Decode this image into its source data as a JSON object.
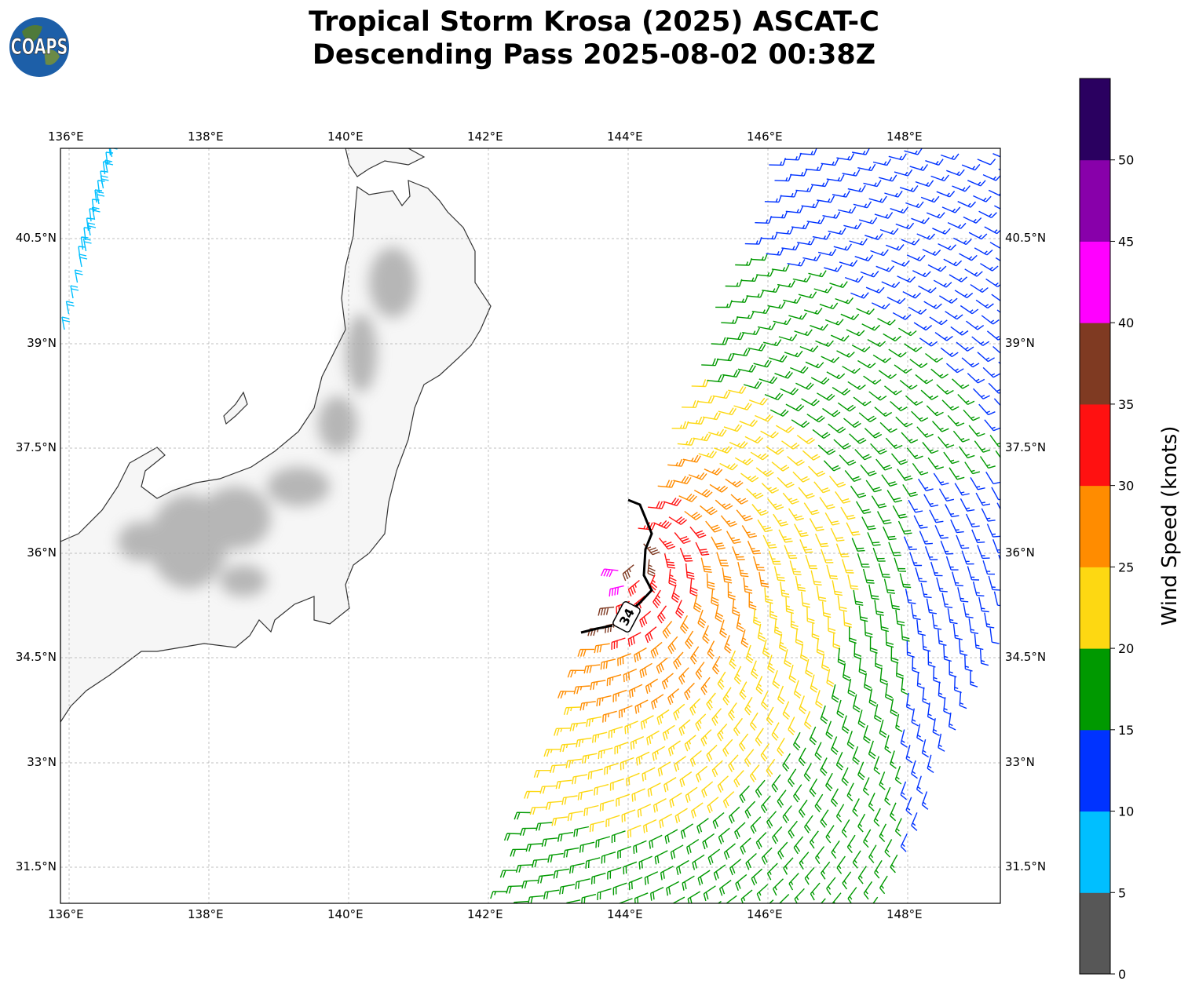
{
  "header": {
    "title_line1": "Tropical Storm Krosa (2025) ASCAT-C",
    "title_line2": "Descending Pass 2025-08-02 00:38Z",
    "logo_text": "COAPS"
  },
  "map": {
    "lon_ticks": [
      "136°E",
      "138°E",
      "140°E",
      "142°E",
      "144°E",
      "146°E",
      "148°E"
    ],
    "lat_ticks": [
      "40.5°N",
      "39°N",
      "37.5°N",
      "36°N",
      "34.5°N",
      "33°N",
      "31.5°N"
    ],
    "contour_label": "34"
  },
  "colorbar": {
    "label": "Wind Speed (knots)",
    "ticks": [
      "0",
      "5",
      "10",
      "15",
      "20",
      "25",
      "30",
      "35",
      "40",
      "45",
      "50"
    ],
    "colors": [
      "#575757",
      "#00bfff",
      "#0033ff",
      "#009900",
      "#fdd812",
      "#ff8c00",
      "#ff1111",
      "#7f3a22",
      "#ff00ff",
      "#8800aa",
      "#2a0060"
    ]
  },
  "chart_data": {
    "type": "map-wind-barbs",
    "title": "Tropical Storm Krosa (2025) ASCAT-C Descending Pass 2025-08-02 00:38Z",
    "lon_range": [
      135.88,
      149.33
    ],
    "lat_range": [
      30.98,
      41.79
    ],
    "colorbar_range_knots": [
      0,
      55
    ],
    "colorbar_step_knots": 5,
    "contour_knots": 34
  }
}
